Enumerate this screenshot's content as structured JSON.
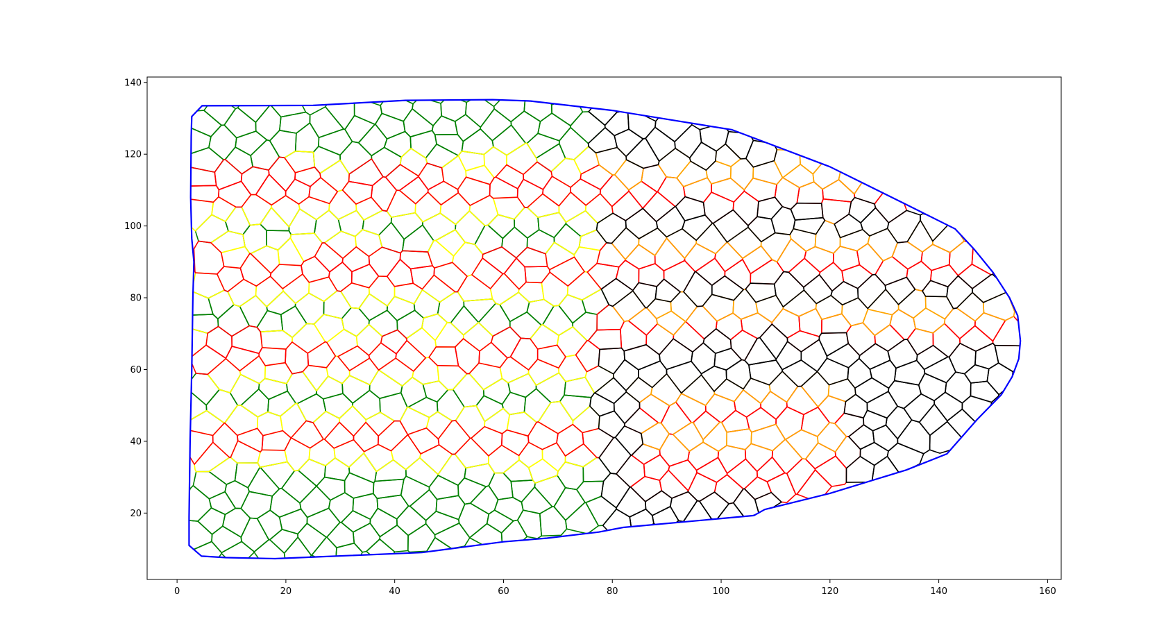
{
  "chart_data": {
    "type": "scatter",
    "title": "",
    "xlabel": "",
    "ylabel": "",
    "xlim": [
      -5.5,
      162.5
    ],
    "ylim": [
      1.5,
      141.5
    ],
    "xticks": [
      "0",
      "20",
      "40",
      "60",
      "80",
      "100",
      "120",
      "140",
      "160"
    ],
    "yticks": [
      "20",
      "40",
      "60",
      "80",
      "100",
      "120",
      "140"
    ],
    "grid": false,
    "legend": "none",
    "boundary": {
      "color": "#0000ff",
      "points": [
        [
          2.7,
          130.5
        ],
        [
          4.6,
          133.5
        ],
        [
          25,
          133.6
        ],
        [
          42,
          135.0
        ],
        [
          58,
          135.2
        ],
        [
          65,
          134.8
        ],
        [
          80,
          132.2
        ],
        [
          102,
          126.8
        ],
        [
          120,
          116.5
        ],
        [
          134,
          106
        ],
        [
          143,
          99.2
        ],
        [
          146.5,
          93.5
        ],
        [
          150,
          87
        ],
        [
          153,
          80
        ],
        [
          154.5,
          75
        ],
        [
          155,
          68
        ],
        [
          154.7,
          63
        ],
        [
          153.5,
          58
        ],
        [
          151.5,
          53
        ],
        [
          147,
          46
        ],
        [
          141.5,
          36.5
        ],
        [
          134,
          32
        ],
        [
          120,
          25.5
        ],
        [
          108,
          21
        ],
        [
          106,
          19.3
        ],
        [
          82,
          16.0
        ],
        [
          77.5,
          14.7
        ],
        [
          68,
          13.0
        ],
        [
          60,
          12.0
        ],
        [
          45,
          9.0
        ],
        [
          26,
          7.8
        ],
        [
          18,
          7.3
        ],
        [
          9,
          7.6
        ],
        [
          4.5,
          8.0
        ],
        [
          2.2,
          11.0
        ],
        [
          2.2,
          19.0
        ],
        [
          2.4,
          40
        ],
        [
          2.7,
          60
        ],
        [
          2.9,
          80
        ],
        [
          3.1,
          90
        ],
        [
          2.7,
          96.5
        ],
        [
          2.5,
          108
        ],
        [
          2.6,
          125
        ],
        [
          2.7,
          130.5
        ]
      ]
    },
    "cells": {
      "cell_size": 5.3,
      "regions": [
        {
          "name": "green",
          "color": "#008000"
        },
        {
          "name": "yellow",
          "color": "#ffff00"
        },
        {
          "name": "red",
          "color": "#ff0000"
        },
        {
          "name": "orange",
          "color": "#ffa500"
        },
        {
          "name": "black",
          "color": "#000000"
        }
      ],
      "stripes_left": [
        [
          118,
          "green"
        ],
        [
          114.5,
          "yellow"
        ],
        [
          108.5,
          "red"
        ],
        [
          103.5,
          "yellow"
        ],
        [
          95.5,
          "green"
        ],
        [
          91,
          "yellow"
        ],
        [
          85.5,
          "red"
        ],
        [
          80.5,
          "yellow"
        ],
        [
          72,
          "green"
        ],
        [
          67.5,
          "yellow"
        ],
        [
          61.5,
          "red"
        ],
        [
          56,
          "yellow"
        ],
        [
          47.5,
          "green"
        ],
        [
          43,
          "yellow"
        ],
        [
          37.5,
          "red"
        ],
        [
          32.5,
          "yellow"
        ],
        [
          0,
          "green"
        ]
      ],
      "right_zone_start_x": 78,
      "stripes_right": [
        [
          119.5,
          "black"
        ],
        [
          113,
          "orange"
        ],
        [
          104.5,
          "red"
        ],
        [
          99,
          "black"
        ],
        [
          93,
          "orange"
        ],
        [
          85,
          "red"
        ],
        [
          80,
          "black"
        ],
        [
          73.5,
          "orange"
        ],
        [
          67.5,
          "red"
        ],
        [
          62,
          "black"
        ],
        [
          0,
          "black"
        ]
      ],
      "lower_patch": {
        "x_min": 84,
        "x_max": 124,
        "bands": [
          [
            52,
            57,
            "orange"
          ],
          [
            44,
            52,
            "red"
          ],
          [
            38,
            44,
            "orange"
          ],
          [
            24,
            38,
            "red"
          ]
        ]
      }
    }
  }
}
